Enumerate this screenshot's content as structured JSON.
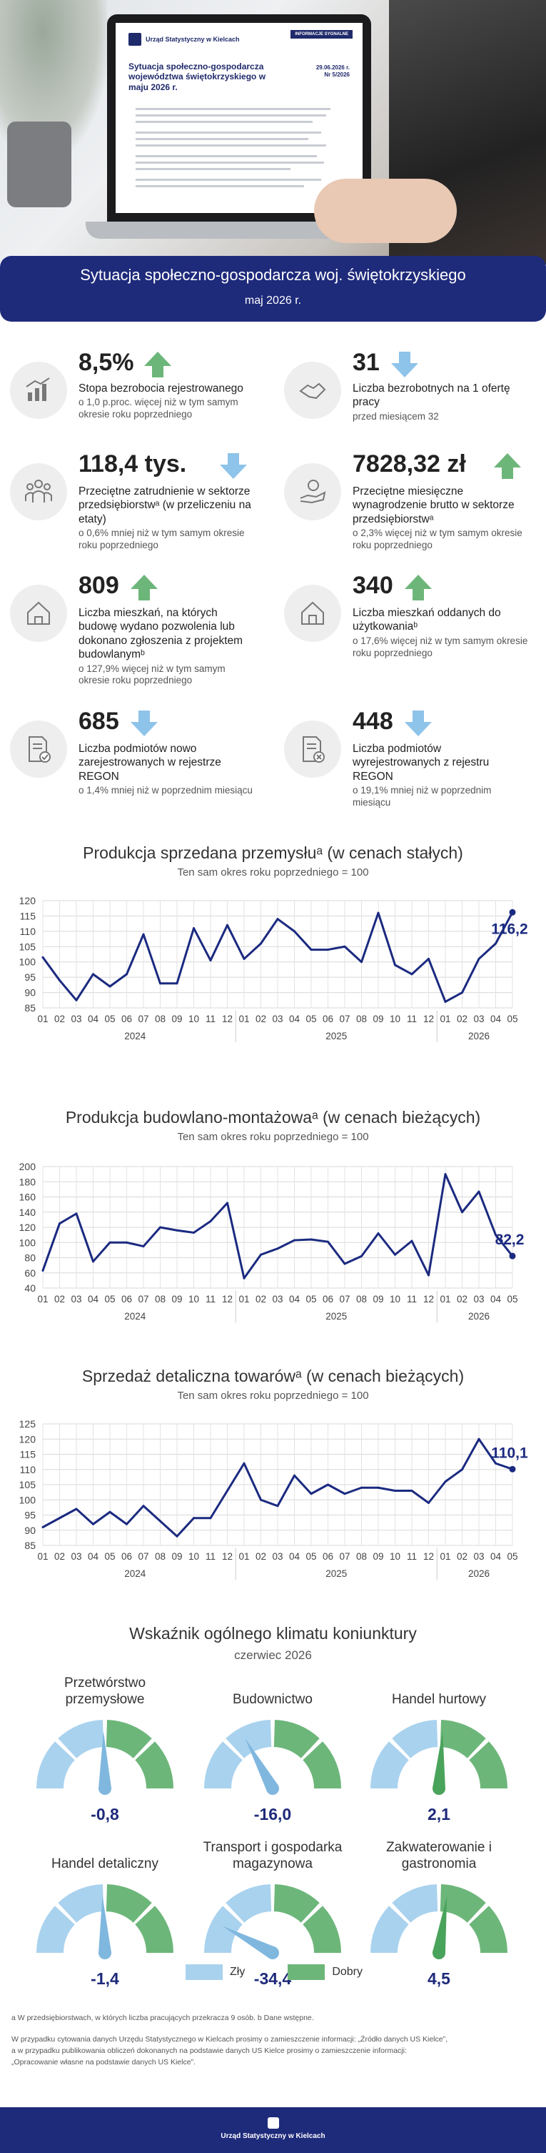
{
  "hero": {
    "report_tag": "INFORMACJE SYGNALNE",
    "report_logo": "Urząd Statystyczny w Kielcach",
    "report_title": "Sytuacja społeczno-gospodarcza województwa świętokrzyskiego w maju 2026 r.",
    "report_date": "29.06.2026 r.",
    "report_no": "Nr 5/2026"
  },
  "banner": {
    "title": "Sytuacja społeczno-gospodarcza woj. świętokrzyskiego",
    "date": "maj 2026 r."
  },
  "stats": [
    {
      "value": "8,5%",
      "arrow": "up",
      "label": "Stopa bezrobocia rejestrowanego",
      "sub": "o 1,0 p.proc. więcej niż w tym samym okresie roku poprzedniego",
      "icon": "unemployment-chart-icon"
    },
    {
      "value": "31",
      "arrow": "down",
      "label": "Liczba bezrobotnych na 1 ofertę pracy",
      "sub": "przed miesiącem 32",
      "icon": "handshake-icon"
    },
    {
      "value": "118,4 tys.",
      "arrow": "down",
      "label": "Przeciętne zatrudnienie w sektorze przedsiębiorstwᵃ (w przeliczeniu na etaty)",
      "sub": "o 0,6% mniej niż w tym samym okresie roku poprzedniego",
      "icon": "employees-icon"
    },
    {
      "value": "7828,32 zł",
      "arrow": "up",
      "label": "Przeciętne miesięczne wynagrodzenie brutto w sektorze przedsiębiorstwᵃ",
      "sub": "o 2,3% więcej niż w tym samym okresie roku poprzedniego",
      "icon": "salary-hand-icon"
    },
    {
      "value": "809",
      "arrow": "up",
      "label": "Liczba mieszkań, na których budowę wydano pozwolenia lub dokonano zgłoszenia z projektem budowlanymᵇ",
      "sub": "o 127,9% więcej niż w tym samym okresie roku poprzedniego",
      "icon": "house-permit-icon"
    },
    {
      "value": "340",
      "arrow": "up",
      "label": "Liczba mieszkań oddanych do użytkowaniaᵇ",
      "sub": "o 17,6% więcej niż w tym samym okresie roku poprzedniego",
      "icon": "house-icon"
    },
    {
      "value": "685",
      "arrow": "down",
      "label": "Liczba podmiotów nowo zarejestrowanych w rejestrze REGON",
      "sub": "o 1,4% mniej niż w poprzednim miesiącu",
      "icon": "document-check-icon"
    },
    {
      "value": "448",
      "arrow": "down",
      "label": "Liczba podmiotów wyrejestrowanych z rejestru REGON",
      "sub": "o 19,1% mniej niż w poprzednim miesiącu",
      "icon": "document-remove-icon"
    }
  ],
  "chart_data": [
    {
      "type": "line",
      "title": "Produkcja sprzedana przemysłuᵃ (w cenach stałych)",
      "subtitle": "Ten sam okres roku poprzedniego = 100",
      "categories": [
        "01",
        "02",
        "03",
        "04",
        "05",
        "06",
        "07",
        "08",
        "09",
        "10",
        "11",
        "12",
        "01",
        "02",
        "03",
        "04",
        "05",
        "06",
        "07",
        "08",
        "09",
        "10",
        "11",
        "12",
        "01",
        "02",
        "03",
        "04",
        "05"
      ],
      "years": [
        {
          "label": "2024",
          "start": 0,
          "end": 11
        },
        {
          "label": "2025",
          "start": 12,
          "end": 23
        },
        {
          "label": "2026",
          "start": 24,
          "end": 28
        }
      ],
      "values": [
        101.5,
        94,
        87.5,
        96,
        92,
        96,
        109,
        93,
        93,
        111,
        100.5,
        112,
        101,
        106,
        114,
        110,
        104,
        104,
        105,
        100,
        116,
        99,
        96,
        101,
        87,
        90,
        101,
        106,
        116.2
      ],
      "ylim": [
        85,
        120
      ],
      "yticks": [
        85,
        90,
        95,
        100,
        105,
        110,
        115,
        120
      ],
      "last_label": "116,2",
      "line_color": "#1b2a80"
    },
    {
      "type": "line",
      "title": "Produkcja budowlano-montażowaᵃ (w cenach bieżących)",
      "subtitle": "Ten sam okres roku poprzedniego = 100",
      "categories": [
        "01",
        "02",
        "03",
        "04",
        "05",
        "06",
        "07",
        "08",
        "09",
        "10",
        "11",
        "12",
        "01",
        "02",
        "03",
        "04",
        "05",
        "06",
        "07",
        "08",
        "09",
        "10",
        "11",
        "12",
        "01",
        "02",
        "03",
        "04",
        "05"
      ],
      "years": [
        {
          "label": "2024",
          "start": 0,
          "end": 11
        },
        {
          "label": "2025",
          "start": 12,
          "end": 23
        },
        {
          "label": "2026",
          "start": 24,
          "end": 28
        }
      ],
      "values": [
        63,
        125,
        138,
        75,
        100,
        100,
        95,
        120,
        116,
        113,
        128,
        152,
        53,
        84,
        92,
        103,
        104,
        101,
        72,
        82,
        112,
        84,
        102,
        57,
        190,
        140,
        167,
        110,
        82.2
      ],
      "ylim": [
        40,
        200
      ],
      "yticks": [
        40,
        60,
        80,
        100,
        120,
        140,
        160,
        180,
        200
      ],
      "last_label": "82,2",
      "line_color": "#1b2a80"
    },
    {
      "type": "line",
      "title": "Sprzedaż detaliczna towarówᵃ (w cenach bieżących)",
      "subtitle": "Ten sam okres roku poprzedniego = 100",
      "categories": [
        "01",
        "02",
        "03",
        "04",
        "05",
        "06",
        "07",
        "08",
        "09",
        "10",
        "11",
        "12",
        "01",
        "02",
        "03",
        "04",
        "05",
        "06",
        "07",
        "08",
        "09",
        "10",
        "11",
        "12",
        "01",
        "02",
        "03",
        "04",
        "05"
      ],
      "years": [
        {
          "label": "2024",
          "start": 0,
          "end": 11
        },
        {
          "label": "2025",
          "start": 12,
          "end": 23
        },
        {
          "label": "2026",
          "start": 24,
          "end": 28
        }
      ],
      "values": [
        91,
        94,
        97,
        92,
        96,
        92,
        98,
        93,
        88,
        94,
        94,
        103,
        112,
        100,
        98,
        108,
        102,
        105,
        102,
        104,
        104,
        103,
        103,
        99,
        106,
        110,
        120,
        112,
        110.1
      ],
      "ylim": [
        85,
        125
      ],
      "yticks": [
        85,
        90,
        95,
        100,
        105,
        110,
        115,
        120,
        125
      ],
      "last_label": "110,1",
      "line_color": "#1b2a80"
    }
  ],
  "climate": {
    "title": "Wskaźnik ogólnego klimatu koniunktury",
    "subtitle": "czerwiec 2026",
    "gauges": [
      {
        "label": "Przetwórstwo przemysłowe",
        "value": -0.8,
        "display": "-0,8",
        "state": "bad"
      },
      {
        "label": "Budownictwo",
        "value": -16.0,
        "display": "-16,0",
        "state": "bad"
      },
      {
        "label": "Handel hurtowy",
        "value": 2.1,
        "display": "2,1",
        "state": "good"
      },
      {
        "label": "Handel detaliczny",
        "value": -1.4,
        "display": "-1,4",
        "state": "bad"
      },
      {
        "label": "Transport i gospodarka magazynowa",
        "value": -34.4,
        "display": "-34,4",
        "state": "bad"
      },
      {
        "label": "Zakwaterowanie i gastronomia",
        "value": 4.5,
        "display": "4,5",
        "state": "good"
      }
    ],
    "legend_bad": "Zły",
    "legend_good": "Dobry",
    "color_bad": "#a9d2ee",
    "color_good": "#6db67a",
    "needle_bad": "#7fb7df",
    "needle_good": "#4aa35b"
  },
  "footnotes": {
    "line1": "a W przedsiębiorstwach, w których liczba pracujących przekracza 9 osób. b Dane wstępne.",
    "line2": "W przypadku cytowania danych Urzędu Statystycznego w Kielcach prosimy o zamieszczenie informacji: „Źródło danych US Kielce”,",
    "line3": "a w przypadku publikowania obliczeń dokonanych na podstawie danych US Kielce prosimy o zamieszczenie informacji:",
    "line4": "„Opracowanie własne na podstawie danych US Kielce”."
  },
  "footer": {
    "logo": "Urząd Statystyczny w Kielcach"
  },
  "colors": {
    "navy": "#1e2a7a",
    "arrow_up": "#6db67a",
    "arrow_down": "#8ec3ea"
  }
}
